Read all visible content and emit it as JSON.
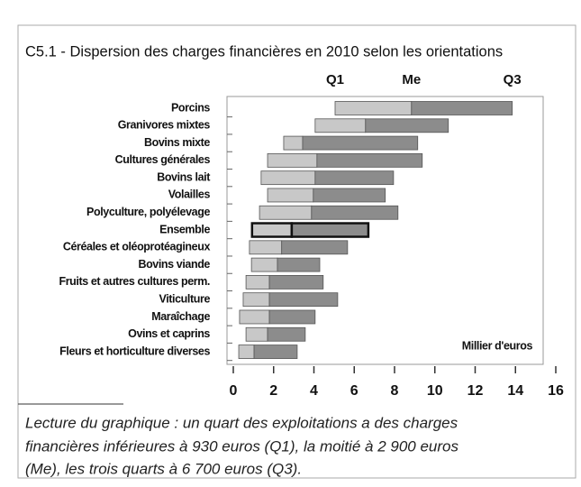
{
  "chart_data": {
    "type": "quartile-bar",
    "title": "C5.1 - Dispersion des charges financières en 2010 selon les orientations",
    "column_labels": [
      "Q1",
      "Me",
      "Q3"
    ],
    "categories": [
      "Porcins",
      "Granivores mixtes",
      "Bovins mixte",
      "Cultures générales",
      "Bovins lait",
      "Volailles",
      "Polyculture, polyélevage",
      "Ensemble",
      "Céréales et oléoprotéagineux",
      "Bovins viande",
      "Fruits et autres cultures perm.",
      "Viticulture",
      "Maraîchage",
      "Ovins et caprins",
      "Fleurs et horticulture diverses"
    ],
    "q1": [
      5.05,
      4.06,
      2.5,
      1.7,
      1.38,
      1.7,
      1.3,
      0.93,
      0.8,
      0.9,
      0.63,
      0.49,
      0.31,
      0.63,
      0.27
    ],
    "me": [
      8.84,
      6.56,
      3.44,
      4.15,
      4.06,
      3.97,
      3.88,
      2.9,
      2.4,
      2.19,
      1.79,
      1.79,
      1.79,
      1.7,
      1.03
    ],
    "q3": [
      13.84,
      10.67,
      9.15,
      9.375,
      7.95,
      7.54,
      8.17,
      6.7,
      5.67,
      4.29,
      4.46,
      5.18,
      4.06,
      3.57,
      3.17
    ],
    "colors": [
      "#c8c8c8",
      "#8c8c8c"
    ],
    "highlight_index": 7,
    "unit_label": "Millier d'euros",
    "xlim": [
      0,
      16
    ],
    "xticks": [
      0,
      2,
      4,
      6,
      8,
      10,
      12,
      14,
      16
    ],
    "note": [
      "Lecture du graphique : un quart des exploitations a des charges",
      "financières inférieures à 930 euros (Q1), la moitié à 2 900 euros",
      "(Me), les trois quarts à 6 700 euros (Q3)."
    ]
  }
}
